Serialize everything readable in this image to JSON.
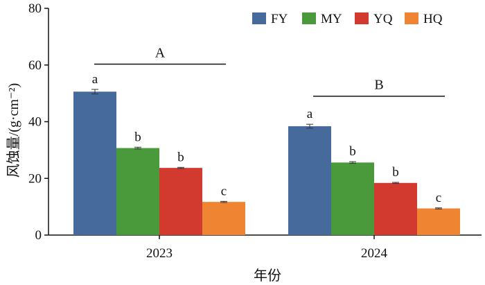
{
  "chart_data": {
    "type": "bar",
    "xlabel": "年份",
    "ylabel": "风蚀量/(g·cm⁻²)",
    "categories": [
      "2023",
      "2024"
    ],
    "ylim": [
      0,
      80
    ],
    "yticks": [
      0,
      20,
      40,
      60,
      80
    ],
    "legend_position": "top-right",
    "grid": false,
    "series": [
      {
        "name": "FY",
        "color": "#476a9c",
        "values": [
          50.6,
          38.4
        ],
        "errors": [
          0.8,
          0.7
        ],
        "labels": [
          "a",
          "a"
        ]
      },
      {
        "name": "MY",
        "color": "#4a9a3c",
        "values": [
          30.7,
          25.6
        ],
        "errors": [
          0.3,
          0.3
        ],
        "labels": [
          "b",
          "b"
        ]
      },
      {
        "name": "YQ",
        "color": "#d23a2f",
        "values": [
          23.7,
          18.4
        ],
        "errors": [
          0.2,
          0.2
        ],
        "labels": [
          "b",
          "b"
        ]
      },
      {
        "name": "HQ",
        "color": "#ef8433",
        "values": [
          11.7,
          9.4
        ],
        "errors": [
          0.2,
          0.2
        ],
        "labels": [
          "c",
          "c"
        ]
      }
    ],
    "group_annotations": [
      {
        "category": "2023",
        "letter": "A",
        "level": 60.3
      },
      {
        "category": "2024",
        "letter": "B",
        "level": 49.0
      }
    ]
  }
}
